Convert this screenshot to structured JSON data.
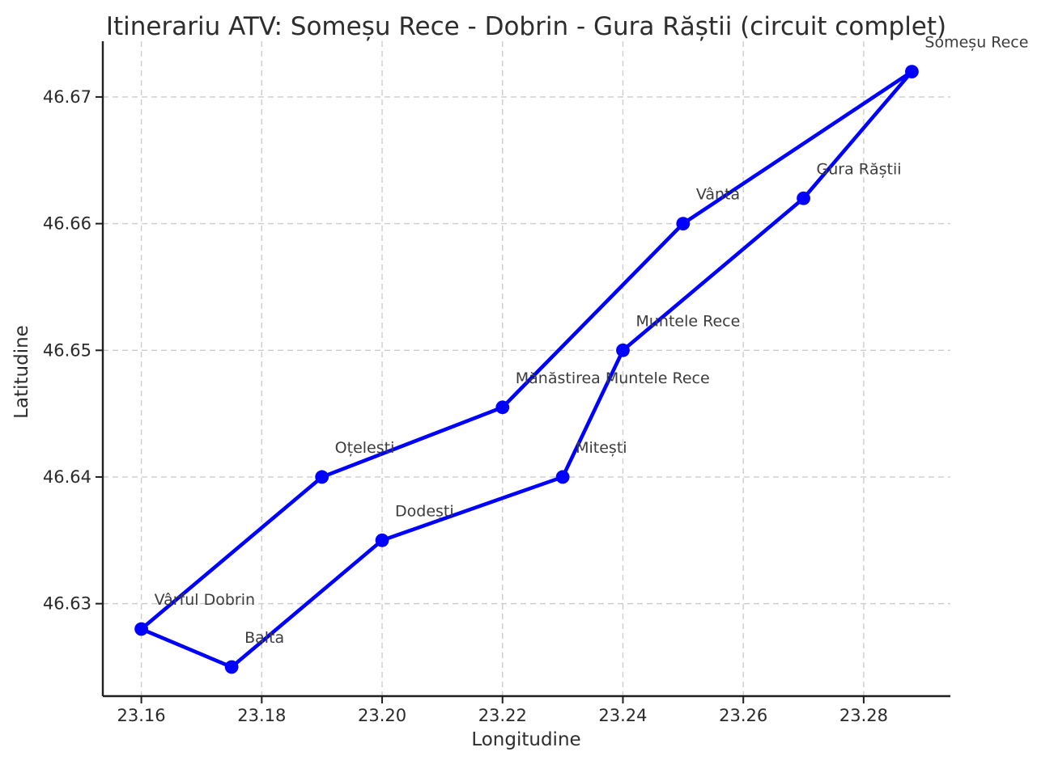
{
  "chart_data": {
    "type": "line",
    "title": "Itinerariu ATV: Someșu Rece - Dobrin - Gura Răștii (circuit complet)",
    "xlabel": "Longitudine",
    "ylabel": "Latitudine",
    "xlim": [
      23.1536,
      23.2944
    ],
    "ylim": [
      46.6227,
      46.6744
    ],
    "xtick_values": [
      23.16,
      23.18,
      23.2,
      23.22,
      23.24,
      23.26,
      23.28
    ],
    "xtick_labels": [
      "23.16",
      "23.18",
      "23.20",
      "23.22",
      "23.24",
      "23.26",
      "23.28"
    ],
    "ytick_values": [
      46.63,
      46.64,
      46.65,
      46.66,
      46.67
    ],
    "ytick_labels": [
      "46.63",
      "46.64",
      "46.65",
      "46.66",
      "46.67"
    ],
    "grid": true,
    "legend": false,
    "closed_loop": true,
    "series": [
      {
        "name": "circuit",
        "points": [
          {
            "label": "Someșu Rece",
            "x": 23.288,
            "y": 46.672
          },
          {
            "label": "Vânta",
            "x": 23.25,
            "y": 46.66
          },
          {
            "label": "Mănăstirea Muntele Rece",
            "x": 23.22,
            "y": 46.6455
          },
          {
            "label": "Oțelești",
            "x": 23.19,
            "y": 46.64
          },
          {
            "label": "Vârful Dobrin",
            "x": 23.16,
            "y": 46.628
          },
          {
            "label": "Balta",
            "x": 23.175,
            "y": 46.625
          },
          {
            "label": "Dodești",
            "x": 23.2,
            "y": 46.635
          },
          {
            "label": "Mitești",
            "x": 23.23,
            "y": 46.64
          },
          {
            "label": "Muntele Rece",
            "x": 23.24,
            "y": 46.65
          },
          {
            "label": "Gura Răștii",
            "x": 23.27,
            "y": 46.662
          }
        ]
      }
    ],
    "colors": {
      "line": "#0000ff",
      "marker": "#0000ff",
      "grid": "#cccccc",
      "spine": "#1f1f1f",
      "tick": "#2a2a2a",
      "text": "#2d2d2d",
      "annotation": "#3c3c3c",
      "background": "#ffffff"
    }
  }
}
